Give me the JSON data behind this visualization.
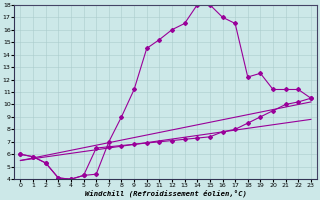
{
  "xlabel": "Windchill (Refroidissement éolien,°C)",
  "bg_color": "#cce8e8",
  "line_color": "#990099",
  "xlim": [
    -0.5,
    23.5
  ],
  "ylim": [
    4,
    18
  ],
  "xticks": [
    0,
    1,
    2,
    3,
    4,
    5,
    6,
    7,
    8,
    9,
    10,
    11,
    12,
    13,
    14,
    15,
    16,
    17,
    18,
    19,
    20,
    21,
    22,
    23
  ],
  "yticks": [
    4,
    5,
    6,
    7,
    8,
    9,
    10,
    11,
    12,
    13,
    14,
    15,
    16,
    17,
    18
  ],
  "line1_x": [
    0,
    1,
    2,
    3,
    4,
    5,
    6,
    7,
    8,
    9,
    10,
    11,
    12,
    13,
    14,
    15,
    16,
    17,
    18,
    19,
    20,
    21,
    22,
    23
  ],
  "line1_y": [
    6.0,
    5.8,
    5.3,
    4.1,
    4.0,
    4.3,
    4.4,
    7.0,
    9.0,
    11.2,
    14.5,
    15.2,
    16.0,
    16.5,
    18.0,
    18.0,
    17.0,
    16.5,
    12.2,
    12.5,
    11.2,
    11.2,
    11.2,
    10.5
  ],
  "line2_x": [
    0,
    1,
    2,
    3,
    4,
    5,
    6,
    7,
    8,
    9,
    10,
    11,
    12,
    13,
    14,
    15,
    16,
    17,
    18,
    19,
    20,
    21,
    22,
    23
  ],
  "line2_y": [
    6.0,
    5.8,
    5.3,
    4.1,
    4.0,
    4.3,
    6.5,
    6.6,
    6.7,
    6.8,
    6.9,
    7.0,
    7.1,
    7.2,
    7.3,
    7.4,
    7.8,
    8.0,
    8.5,
    9.0,
    9.5,
    10.0,
    10.2,
    10.5
  ],
  "line3_x": [
    0,
    23
  ],
  "line3_y": [
    5.5,
    8.8
  ],
  "line4_x": [
    0,
    23
  ],
  "line4_y": [
    5.5,
    10.2
  ]
}
